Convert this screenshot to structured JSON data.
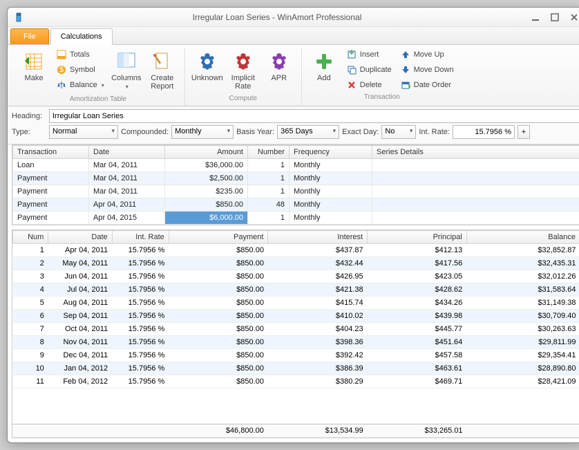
{
  "window": {
    "title": "Irregular Loan Series - WinAmort Professional"
  },
  "tabs": {
    "file": "File",
    "calculations": "Calculations"
  },
  "ribbon": {
    "groups": {
      "amort": {
        "label": "Amortization Table",
        "make": "Make",
        "totals": "Totals",
        "symbol": "Symbol",
        "balance": "Balance",
        "columns": "Columns",
        "create_report": "Create\nReport"
      },
      "compute": {
        "label": "Compute",
        "unknown": "Unknown",
        "implicit_rate": "Implicit\nRate",
        "apr": "APR"
      },
      "transaction": {
        "label": "Transaction",
        "add": "Add",
        "insert": "Insert",
        "duplicate": "Duplicate",
        "delete": "Delete",
        "move_up": "Move Up",
        "move_down": "Move Down",
        "date_order": "Date Order"
      }
    }
  },
  "form": {
    "heading_label": "Heading:",
    "heading_value": "Irregular Loan Series",
    "type_label": "Type:",
    "type_value": "Normal",
    "comp_label": "Compounded:",
    "comp_value": "Monthly",
    "basis_label": "Basis Year:",
    "basis_value": "365 Days",
    "exact_label": "Exact Day:",
    "exact_value": "No",
    "rate_label": "Int. Rate:",
    "rate_value": "15.7956 %"
  },
  "tx_table": {
    "headers": [
      "Transaction",
      "Date",
      "Amount",
      "Number",
      "Frequency",
      "Series Details"
    ],
    "selected_row": 4,
    "selected_col": 2,
    "rows": [
      [
        "Loan",
        "Mar 04, 2011",
        "$36,000.00",
        "1",
        "Monthly",
        ""
      ],
      [
        "Payment",
        "Mar 04, 2011",
        "$2,500.00",
        "1",
        "Monthly",
        ""
      ],
      [
        "Payment",
        "Mar 04, 2011",
        "$235.00",
        "1",
        "Monthly",
        ""
      ],
      [
        "Payment",
        "Apr 04, 2011",
        "$850.00",
        "48",
        "Monthly",
        ""
      ],
      [
        "Payment",
        "Apr 04, 2015",
        "$6,000.00",
        "1",
        "Monthly",
        ""
      ]
    ],
    "col_align": [
      "l",
      "l",
      "r",
      "r",
      "l",
      "l"
    ],
    "col_widths": [
      "110px",
      "110px",
      "120px",
      "60px",
      "120px",
      "auto"
    ]
  },
  "schedule_table": {
    "headers": [
      "Num",
      "Date",
      "Int. Rate",
      "Payment",
      "Interest",
      "Principal",
      "Balance"
    ],
    "col_align": [
      "r",
      "r",
      "r",
      "r",
      "r",
      "r",
      "r"
    ],
    "col_widths": [
      "50px",
      "90px",
      "80px",
      "140px",
      "140px",
      "140px",
      "160px"
    ],
    "rows": [
      [
        "1",
        "Apr 04, 2011",
        "15.7956 %",
        "$850.00",
        "$437.87",
        "$412.13",
        "$32,852.87"
      ],
      [
        "2",
        "May 04, 2011",
        "15.7956 %",
        "$850.00",
        "$432.44",
        "$417.56",
        "$32,435.31"
      ],
      [
        "3",
        "Jun 04, 2011",
        "15.7956 %",
        "$850.00",
        "$426.95",
        "$423.05",
        "$32,012.26"
      ],
      [
        "4",
        "Jul 04, 2011",
        "15.7956 %",
        "$850.00",
        "$421.38",
        "$428.62",
        "$31,583.64"
      ],
      [
        "5",
        "Aug 04, 2011",
        "15.7956 %",
        "$850.00",
        "$415.74",
        "$434.26",
        "$31,149.38"
      ],
      [
        "6",
        "Sep 04, 2011",
        "15.7956 %",
        "$850.00",
        "$410.02",
        "$439.98",
        "$30,709.40"
      ],
      [
        "7",
        "Oct 04, 2011",
        "15.7956 %",
        "$850.00",
        "$404.23",
        "$445.77",
        "$30,263.63"
      ],
      [
        "8",
        "Nov 04, 2011",
        "15.7956 %",
        "$850.00",
        "$398.36",
        "$451.64",
        "$29,811.99"
      ],
      [
        "9",
        "Dec 04, 2011",
        "15.7956 %",
        "$850.00",
        "$392.42",
        "$457.58",
        "$29,354.41"
      ],
      [
        "10",
        "Jan 04, 2012",
        "15.7956 %",
        "$850.00",
        "$386.39",
        "$463.61",
        "$28,890.80"
      ],
      [
        "11",
        "Feb 04, 2012",
        "15.7956 %",
        "$850.00",
        "$380.29",
        "$469.71",
        "$28,421.09"
      ]
    ],
    "totals": [
      "",
      "",
      "",
      "$46,800.00",
      "$13,534.99",
      "$33,265.01",
      ""
    ]
  },
  "colors": {
    "accent_orange": "#f59b1a",
    "alt_row": "#eef5fc",
    "selected_cell": "#5a9bd5",
    "gear_blue": "#2d6fb7",
    "gear_red": "#c23535",
    "gear_purple": "#8a3db0",
    "plus_green": "#4caf50",
    "arrow_blue": "#2d6fb7",
    "x_red": "#d43b3b",
    "gold": "#f5a623"
  }
}
